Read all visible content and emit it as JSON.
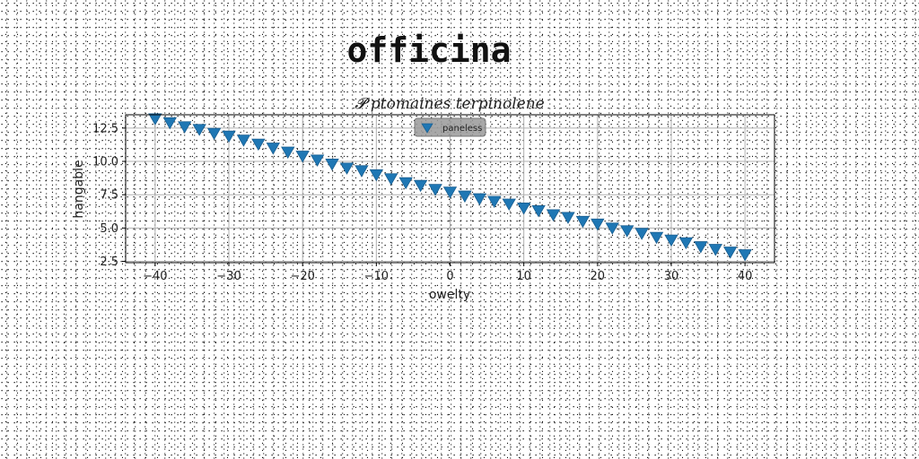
{
  "figure": {
    "title": "officina"
  },
  "chart_data": {
    "type": "scatter",
    "title": "𝓟 ptomaines terpinolene",
    "xlabel": "owelty",
    "ylabel": "hangable",
    "xlim": [
      -44,
      44
    ],
    "ylim": [
      2.4,
      13.5
    ],
    "xticks": [
      -40,
      -30,
      -20,
      -10,
      0,
      10,
      20,
      30,
      40
    ],
    "yticks": [
      2.5,
      5.0,
      7.5,
      10.0,
      12.5
    ],
    "xtick_labels": [
      "−40",
      "−30",
      "−20",
      "−10",
      "0",
      "10",
      "20",
      "30",
      "40"
    ],
    "ytick_labels": [
      "2.5",
      "5.0",
      "7.5",
      "10.0",
      "12.5"
    ],
    "grid": true,
    "legend": {
      "position": "upper center"
    },
    "series": [
      {
        "name": "paneless",
        "marker": "triangle-down",
        "color": "#1f77b4",
        "x": [
          -40,
          -38,
          -36,
          -34,
          -32,
          -30,
          -28,
          -26,
          -24,
          -22,
          -20,
          -18,
          -16,
          -14,
          -12,
          -10,
          -8,
          -6,
          -4,
          -2,
          0,
          2,
          4,
          6,
          8,
          10,
          12,
          14,
          16,
          18,
          20,
          22,
          24,
          26,
          28,
          30,
          32,
          34,
          36,
          38,
          40
        ],
        "y": [
          13.2,
          12.9,
          12.6,
          12.4,
          12.1,
          11.9,
          11.6,
          11.3,
          11.0,
          10.7,
          10.4,
          10.1,
          9.8,
          9.5,
          9.3,
          9.0,
          8.7,
          8.4,
          8.2,
          7.9,
          7.7,
          7.4,
          7.2,
          7.0,
          6.8,
          6.5,
          6.3,
          6.0,
          5.8,
          5.5,
          5.3,
          5.0,
          4.8,
          4.6,
          4.3,
          4.1,
          3.9,
          3.6,
          3.4,
          3.2,
          3.0
        ]
      }
    ]
  }
}
